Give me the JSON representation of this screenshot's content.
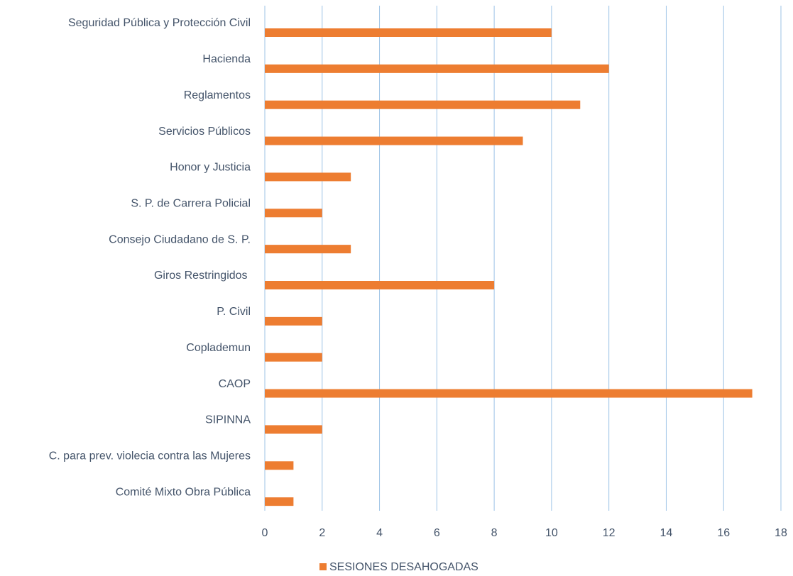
{
  "chart_data": {
    "type": "barh",
    "categories": [
      "Seguridad Pública y Protección Civil",
      "Hacienda",
      "Reglamentos",
      "Servicios Públicos",
      "Honor y Justicia",
      "S. P. de Carrera Policial",
      "Consejo Ciudadano de S. P.",
      "Giros Restringidos ",
      "P. Civil",
      "Coplademun",
      "CAOP",
      "SIPINNA",
      "C. para prev. violecia contra las Mujeres",
      "Comité Mixto Obra Pública"
    ],
    "series": [
      {
        "name": "SESIONES DESAHOGADAS",
        "color": "#ed7d31",
        "values": [
          10,
          12,
          11,
          9,
          3,
          2,
          3,
          8,
          2,
          2,
          17,
          2,
          1,
          1
        ]
      }
    ],
    "xlim": [
      0,
      18
    ],
    "xticks": [
      0,
      2,
      4,
      6,
      8,
      10,
      12,
      14,
      16,
      18
    ],
    "grid": true,
    "legend": "bottom"
  }
}
